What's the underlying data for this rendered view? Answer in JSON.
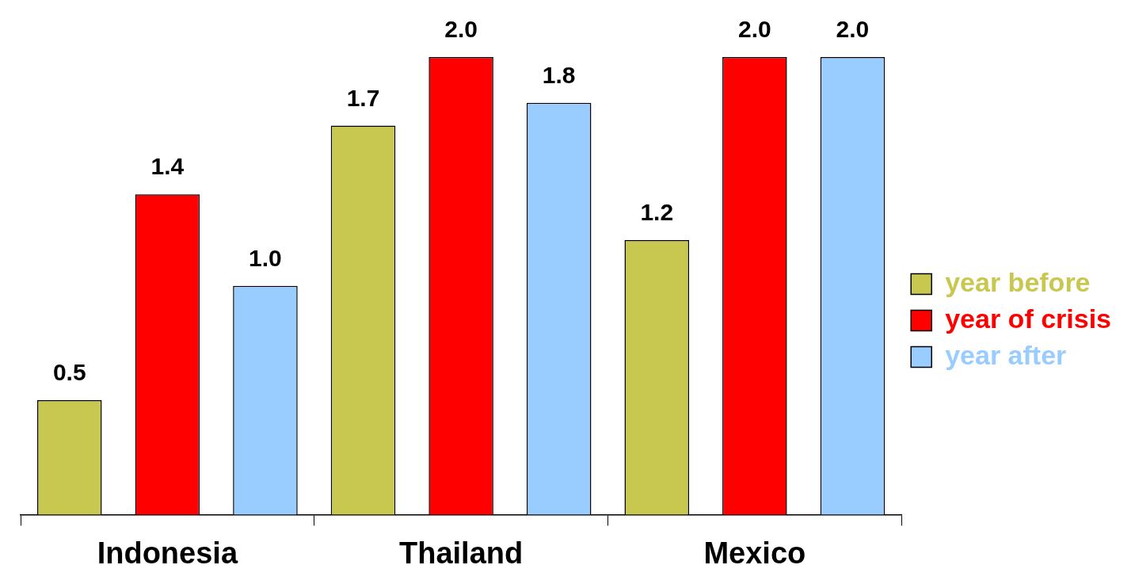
{
  "chart_data": {
    "type": "bar",
    "categories": [
      "Indonesia",
      "Thailand",
      "Mexico"
    ],
    "series": [
      {
        "name": "year before",
        "color": "#c8c850",
        "values": [
          0.5,
          1.7,
          1.2
        ],
        "value_labels": [
          "0.5",
          "1.7",
          "1.2"
        ]
      },
      {
        "name": "year of crisis",
        "color": "#ff0000",
        "values": [
          1.4,
          2.0,
          2.0
        ],
        "value_labels": [
          "1.4",
          "2.0",
          "2.0"
        ]
      },
      {
        "name": "year after",
        "color": "#99ccff",
        "values": [
          1.0,
          1.8,
          2.0
        ],
        "value_labels": [
          "1.0",
          "1.8",
          "2.0"
        ]
      }
    ],
    "legend": "right",
    "grid": false
  }
}
